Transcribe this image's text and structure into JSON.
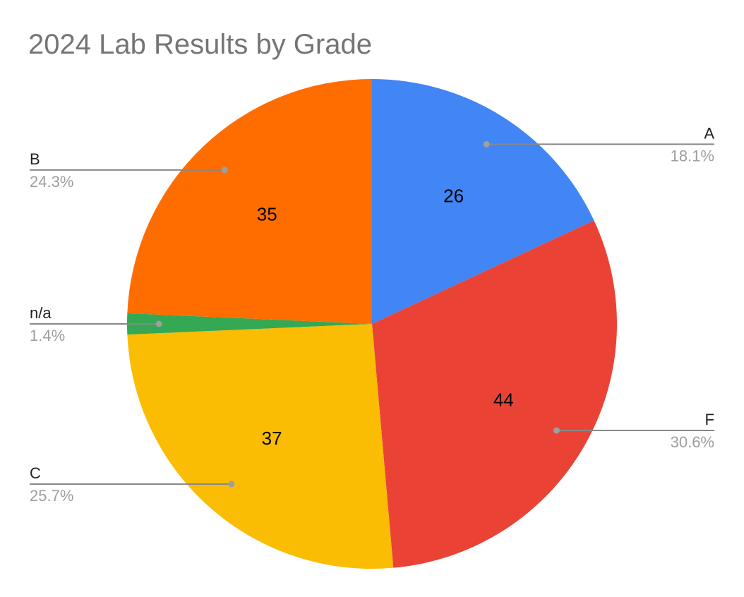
{
  "chart_data": {
    "type": "pie",
    "title": "2024 Lab Results by Grade",
    "slices": [
      {
        "name": "A",
        "value": 26,
        "percent_label": "18.1%",
        "color": "#4285F4"
      },
      {
        "name": "F",
        "value": 44,
        "percent_label": "30.6%",
        "color": "#EA4335"
      },
      {
        "name": "C",
        "value": 37,
        "percent_label": "25.7%",
        "color": "#FBBC04"
      },
      {
        "name": "n/a",
        "value": 2,
        "percent_label": "1.4%",
        "color": "#34A853"
      },
      {
        "name": "B",
        "value": 35,
        "percent_label": "24.3%",
        "color": "#FF6D01"
      }
    ],
    "start_angle": "top, clockwise",
    "label_placement": "outside with leader lines"
  }
}
